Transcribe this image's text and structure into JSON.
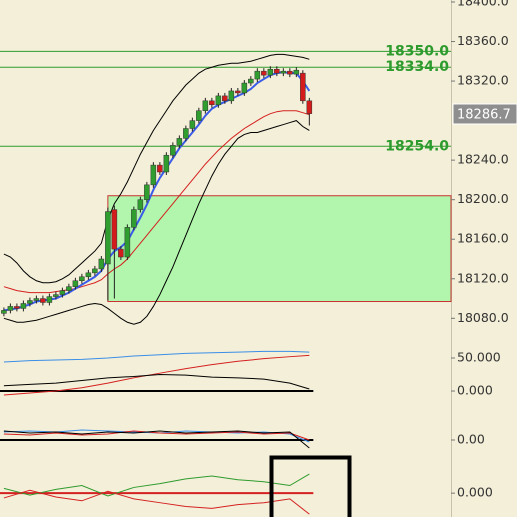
{
  "chart_data": [
    {
      "type": "candlestick",
      "categories": [
        null,
        null,
        null,
        null,
        null,
        null,
        null,
        null,
        null,
        null,
        null,
        null,
        null,
        null,
        null,
        null,
        null,
        null,
        null,
        null,
        null,
        null,
        null,
        null,
        null,
        null,
        null,
        null,
        null,
        null,
        null,
        null,
        null,
        null,
        null,
        null,
        null,
        null,
        null,
        null,
        null,
        null,
        null,
        null,
        null,
        null,
        null,
        null
      ],
      "open": [
        18085,
        18088,
        18092,
        18090,
        18095,
        18098,
        18100,
        18096,
        18102,
        18104,
        18108,
        18112,
        18118,
        18122,
        18126,
        18130,
        18135,
        18190,
        18150,
        18142,
        18172,
        18190,
        18200,
        18215,
        18235,
        18228,
        18245,
        18255,
        18262,
        18272,
        18280,
        18290,
        18300,
        18296,
        18305,
        18300,
        18310,
        18308,
        18318,
        18322,
        18330,
        18326,
        18332,
        18328,
        18330,
        18327,
        18328,
        18300
      ],
      "high": [
        18091,
        18095,
        18095,
        18098,
        18101,
        18103,
        18103,
        18105,
        18107,
        18111,
        18115,
        18121,
        18125,
        18129,
        18133,
        18143,
        18192,
        18194,
        18153,
        18175,
        18193,
        18203,
        18218,
        18238,
        18238,
        18248,
        18258,
        18265,
        18275,
        18283,
        18293,
        18303,
        18303,
        18308,
        18308,
        18313,
        18313,
        18321,
        18325,
        18333,
        18333,
        18335,
        18335,
        18333,
        18333,
        18334,
        18331,
        18303
      ],
      "low": [
        18082,
        18085,
        18087,
        18087,
        18092,
        18095,
        18093,
        18093,
        18099,
        18101,
        18105,
        18109,
        18115,
        18119,
        18123,
        18127,
        18098,
        18100,
        18139,
        18139,
        18169,
        18187,
        18197,
        18212,
        18225,
        18225,
        18242,
        18252,
        18259,
        18269,
        18277,
        18287,
        18293,
        18293,
        18297,
        18297,
        18305,
        18305,
        18315,
        18319,
        18323,
        18323,
        18325,
        18325,
        18324,
        18324,
        18297,
        18275
      ],
      "close": [
        18088,
        18092,
        18090,
        18095,
        18098,
        18100,
        18096,
        18102,
        18104,
        18108,
        18112,
        18118,
        18122,
        18126,
        18130,
        18140,
        18188,
        18150,
        18142,
        18172,
        18190,
        18200,
        18215,
        18235,
        18228,
        18245,
        18255,
        18262,
        18272,
        18280,
        18290,
        18300,
        18296,
        18305,
        18300,
        18310,
        18308,
        18318,
        18322,
        18330,
        18326,
        18332,
        18328,
        18330,
        18327,
        18331,
        18300,
        18287
      ],
      "up_color": "#2f9e2f",
      "down_color": "#d41c1c",
      "overlays": [
        {
          "color": "#000000",
          "values": [
            18145,
            18142,
            18136,
            18128,
            18122,
            18118,
            18116,
            18116,
            18117,
            18120,
            18124,
            18130,
            18136,
            18142,
            18148,
            18156,
            18180,
            18196,
            18206,
            18218,
            18232,
            18246,
            18258,
            18270,
            18280,
            18290,
            18300,
            18308,
            18316,
            18322,
            18328,
            18332,
            18334,
            18336,
            18337,
            18338,
            18338,
            18339,
            18340,
            18342,
            18344,
            18346,
            18347,
            18347,
            18346,
            18345,
            18344,
            18342
          ]
        },
        {
          "color": "#000000",
          "values": [
            18080,
            18078,
            18076,
            18076,
            18077,
            18078,
            18080,
            18082,
            18084,
            18086,
            18088,
            18090,
            18092,
            18094,
            18095,
            18094,
            18090,
            18085,
            18080,
            18076,
            18074,
            18076,
            18082,
            18092,
            18104,
            18118,
            18132,
            18148,
            18164,
            18180,
            18196,
            18210,
            18224,
            18236,
            18246,
            18254,
            18262,
            18266,
            18268,
            18268,
            18270,
            18272,
            18274,
            18276,
            18278,
            18280,
            18274,
            18270
          ]
        },
        {
          "color": "#d42020",
          "values": [
            18112,
            18110,
            18108,
            18107,
            18106,
            18106,
            18106,
            18106,
            18107,
            18108,
            18109,
            18110,
            18112,
            18114,
            18116,
            18119,
            18125,
            18130,
            18134,
            18140,
            18148,
            18156,
            18164,
            18172,
            18180,
            18188,
            18196,
            18204,
            18212,
            18220,
            18228,
            18236,
            18243,
            18250,
            18256,
            18262,
            18267,
            18272,
            18276,
            18280,
            18284,
            18287,
            18289,
            18290,
            18290,
            18290,
            18288,
            18286
          ]
        },
        {
          "color": "#3a5ce8",
          "values": [
            18088,
            18089,
            18090,
            18092,
            18094,
            18097,
            18098,
            18099,
            18100,
            18103,
            18106,
            18110,
            18114,
            18118,
            18122,
            18128,
            18140,
            18148,
            18152,
            18158,
            18170,
            18182,
            18195,
            18210,
            18222,
            18232,
            18242,
            18252,
            18260,
            18268,
            18276,
            18285,
            18292,
            18296,
            18299,
            18302,
            18305,
            18308,
            18312,
            18318,
            18322,
            18326,
            18328,
            18329,
            18328,
            18328,
            18320,
            18310
          ]
        }
      ],
      "levels": [
        {
          "value": 18350,
          "label": "18350.0"
        },
        {
          "value": 18334,
          "label": "18334.0"
        },
        {
          "value": 18254,
          "label": "18254.0"
        }
      ],
      "level_color": "#2e9b2e",
      "zone": {
        "low": 18097,
        "high": 18204,
        "start_index": 16,
        "fill": "#b2f5ac",
        "border": "#c83232"
      },
      "price_tag": {
        "value": 18286.7,
        "label": "18286.7"
      },
      "xlim": [
        -0.6,
        68.8
      ],
      "ylim": [
        18053,
        18402
      ],
      "yticks": [
        {
          "value": 18400,
          "label": "18400.0"
        },
        {
          "value": 18360,
          "label": "18360.0"
        },
        {
          "value": 18320,
          "label": "18320.0"
        },
        {
          "value": 18240,
          "label": "18240.0"
        },
        {
          "value": 18200,
          "label": "18200.0"
        },
        {
          "value": 18160,
          "label": "18160.0"
        },
        {
          "value": 18120,
          "label": "18120.0"
        },
        {
          "value": 18080,
          "label": "18080.0"
        }
      ]
    },
    {
      "type": "line",
      "x": [
        0,
        4,
        8,
        12,
        16,
        20,
        24,
        28,
        32,
        36,
        40,
        44,
        47
      ],
      "series": [
        {
          "color": "#3a8ee8",
          "values": [
            44,
            46,
            47,
            48,
            50,
            53,
            55,
            57,
            58,
            59,
            60,
            60,
            59
          ]
        },
        {
          "color": "#d42020",
          "values": [
            -6,
            -3,
            0,
            5,
            12,
            20,
            27,
            34,
            40,
            45,
            49,
            52,
            54
          ]
        },
        {
          "color": "#000000",
          "values": [
            8,
            10,
            12,
            16,
            20,
            22,
            25,
            24,
            21,
            20,
            18,
            12,
            3
          ]
        }
      ],
      "hline": {
        "value": 0,
        "color": "#000000"
      },
      "xlim": [
        -0.6,
        68.8
      ],
      "ylim": [
        -13.6,
        69.7
      ],
      "yticks": [
        {
          "value": 50,
          "label": "50.000"
        },
        {
          "value": 0,
          "label": "0.000"
        }
      ]
    },
    {
      "type": "line",
      "x": [
        0,
        4,
        8,
        12,
        16,
        20,
        24,
        28,
        32,
        36,
        40,
        44,
        47
      ],
      "series": [
        {
          "color": "#3a8ee8",
          "values": [
            8,
            9,
            8,
            10,
            9,
            8,
            7,
            9,
            8,
            7,
            8,
            6,
            -2
          ]
        },
        {
          "color": "#d42020",
          "values": [
            6,
            5,
            7,
            5,
            6,
            9,
            7,
            6,
            7,
            8,
            6,
            7,
            0
          ]
        },
        {
          "color": "#000000",
          "values": [
            9,
            7,
            8,
            6,
            8,
            7,
            9,
            7,
            8,
            9,
            7,
            8,
            -8
          ]
        }
      ],
      "hline": {
        "value": 0,
        "color": "#000000"
      },
      "xlim": [
        -0.6,
        68.8
      ],
      "ylim": [
        -15,
        40
      ],
      "yticks": [
        {
          "value": 0,
          "label": "0.00"
        }
      ]
    },
    {
      "type": "line",
      "x": [
        0,
        4,
        8,
        12,
        16,
        20,
        24,
        28,
        32,
        36,
        40,
        44,
        47
      ],
      "series": [
        {
          "color": "#2e9b2e",
          "values": [
            5,
            -2,
            4,
            8,
            -3,
            6,
            10,
            15,
            18,
            14,
            12,
            8,
            20
          ]
        },
        {
          "color": "#d42020",
          "values": [
            -5,
            3,
            -4,
            -8,
            2,
            -6,
            -10,
            -14,
            -16,
            -12,
            -10,
            -6,
            -22
          ]
        }
      ],
      "hline": {
        "value": 0,
        "color": "#d42020"
      },
      "xlim": [
        -0.6,
        68.8
      ],
      "ylim": [
        -25,
        40
      ],
      "yticks": [
        {
          "value": 0,
          "label": "0.000"
        }
      ]
    }
  ]
}
